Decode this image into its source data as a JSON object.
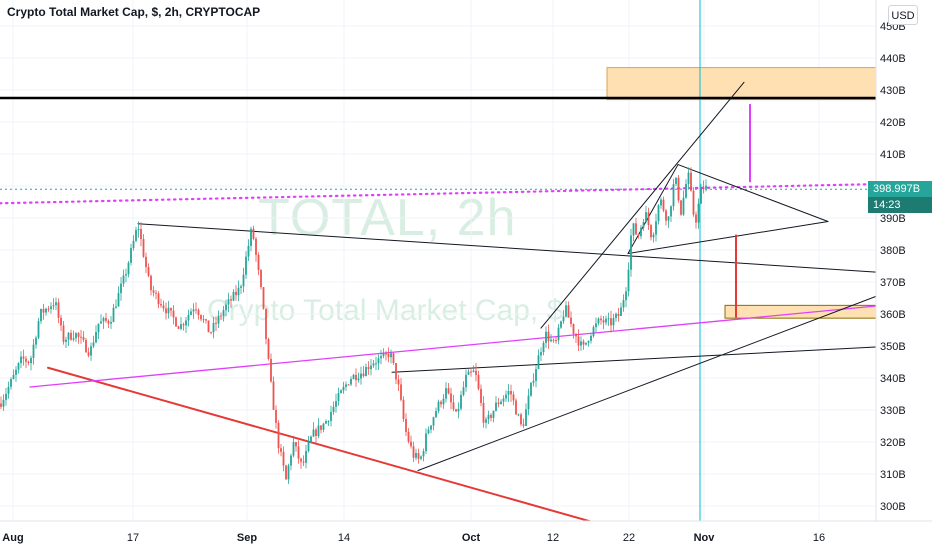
{
  "header": {
    "title": "Crypto Total Market Cap, $, 2h, CRYPTOCAP",
    "currency_button": "USD"
  },
  "watermark": {
    "symbol": "TOTAL, 2h",
    "name": "Crypto Total Market Cap, $"
  },
  "price_axis": {
    "current_price": "398.997B",
    "countdown": "14:23",
    "current_color": "#26a69a",
    "countdown_color": "#1e7b72"
  },
  "chart_data": {
    "type": "candlestick",
    "title": "Crypto Total Market Cap, $, 2h, CRYPTOCAP",
    "y_unit": "USD (billions)",
    "ylim": [
      295,
      455
    ],
    "y_ticks": [
      300,
      310,
      320,
      330,
      340,
      350,
      360,
      370,
      380,
      390,
      400,
      410,
      420,
      430,
      440,
      450
    ],
    "y_tick_labels": [
      "300B",
      "310B",
      "320B",
      "330B",
      "340B",
      "350B",
      "360B",
      "370B",
      "380B",
      "390B",
      "400B",
      "410B",
      "420B",
      "430B",
      "440B",
      "450B"
    ],
    "x_ticks": [
      {
        "label": "Aug",
        "bold": true
      },
      {
        "label": "17",
        "bold": false
      },
      {
        "label": "Sep",
        "bold": true
      },
      {
        "label": "14",
        "bold": false
      },
      {
        "label": "Oct",
        "bold": true
      },
      {
        "label": "12",
        "bold": false
      },
      {
        "label": "22",
        "bold": false
      },
      {
        "label": "Nov",
        "bold": true
      },
      {
        "label": "16",
        "bold": false
      }
    ],
    "price_path_anchors": [
      [
        0,
        332
      ],
      [
        10,
        338
      ],
      [
        22,
        346
      ],
      [
        30,
        345
      ],
      [
        40,
        360
      ],
      [
        55,
        364
      ],
      [
        63,
        352
      ],
      [
        75,
        354
      ],
      [
        90,
        348
      ],
      [
        98,
        357
      ],
      [
        110,
        358
      ],
      [
        125,
        372
      ],
      [
        138,
        388
      ],
      [
        150,
        368
      ],
      [
        165,
        362
      ],
      [
        180,
        356
      ],
      [
        195,
        363
      ],
      [
        210,
        354
      ],
      [
        225,
        362
      ],
      [
        240,
        368
      ],
      [
        252,
        387
      ],
      [
        262,
        365
      ],
      [
        270,
        340
      ],
      [
        278,
        320
      ],
      [
        286,
        308
      ],
      [
        293,
        320
      ],
      [
        302,
        312
      ],
      [
        312,
        322
      ],
      [
        325,
        326
      ],
      [
        337,
        333
      ],
      [
        350,
        340
      ],
      [
        363,
        342
      ],
      [
        372,
        345
      ],
      [
        383,
        346
      ],
      [
        390,
        348
      ],
      [
        398,
        338
      ],
      [
        405,
        324
      ],
      [
        413,
        316
      ],
      [
        420,
        314
      ],
      [
        428,
        324
      ],
      [
        436,
        330
      ],
      [
        446,
        336
      ],
      [
        456,
        328
      ],
      [
        466,
        340
      ],
      [
        475,
        342
      ],
      [
        485,
        325
      ],
      [
        497,
        332
      ],
      [
        510,
        336
      ],
      [
        522,
        324
      ],
      [
        533,
        340
      ],
      [
        545,
        354
      ],
      [
        555,
        350
      ],
      [
        565,
        362
      ],
      [
        573,
        355
      ],
      [
        583,
        349
      ],
      [
        590,
        354
      ],
      [
        600,
        358
      ],
      [
        610,
        357
      ],
      [
        620,
        360
      ],
      [
        627,
        370
      ],
      [
        632,
        388
      ],
      [
        638,
        384
      ],
      [
        645,
        392
      ],
      [
        652,
        384
      ],
      [
        660,
        396
      ],
      [
        668,
        389
      ],
      [
        675,
        403
      ],
      [
        681,
        392
      ],
      [
        688,
        404
      ],
      [
        695,
        388
      ],
      [
        702,
        400
      ],
      [
        708,
        398.997
      ]
    ],
    "series": [
      {
        "name": "Crypto Total Market Cap",
        "last_value": 398.997
      }
    ],
    "up_color": "#26a69a",
    "down_color": "#ef5350",
    "annotations": {
      "horizontal_lines": [
        {
          "value": 427.5,
          "color": "#000000",
          "style": "solid",
          "width": 2.5
        },
        {
          "value": 398.997,
          "color": "#26a69a",
          "style": "dotted",
          "width": 1
        }
      ],
      "rectangles": [
        {
          "x0": 607,
          "x1": 876,
          "y0": 427,
          "y1": 437,
          "fill": "#ffe0b2",
          "stroke": "#e0a050"
        },
        {
          "x0": 725,
          "x1": 876,
          "y0": 358.7,
          "y1": 362.7,
          "fill": "#ffe0b2",
          "stroke": "#8a6d00"
        }
      ],
      "trendlines": [
        {
          "name": "red-support-line",
          "color": "#e53935",
          "width": 2,
          "points": [
            [
              48,
              343.2
            ],
            [
              598,
              294.5
            ]
          ]
        },
        {
          "name": "pink-rising-line",
          "color": "#e040fb",
          "width": 1.3,
          "points": [
            [
              30,
              337.2
            ],
            [
              876,
              362.5
            ]
          ]
        },
        {
          "name": "pink-dotted-line",
          "color": "#e040fb",
          "width": 2.2,
          "dash": "dotted",
          "points": [
            [
              0,
              394.6
            ],
            [
              876,
              400.6
            ]
          ]
        },
        {
          "name": "upper-descending-line",
          "color": "#131722",
          "width": 1,
          "points": [
            [
              138,
              388.2
            ],
            [
              876,
              373.1
            ]
          ]
        },
        {
          "name": "rectangle-top-line",
          "color": "#131722",
          "width": 1,
          "points": [
            [
              392,
              341.8
            ],
            [
              876,
              349.7
            ]
          ]
        },
        {
          "name": "broadening-upper-line",
          "color": "#131722",
          "width": 1,
          "points": [
            [
              541,
              355.6
            ],
            [
              744,
              432.4
            ]
          ]
        },
        {
          "name": "broadening-lower-line",
          "color": "#131722",
          "width": 1,
          "points": [
            [
              418,
              311.1
            ],
            [
              876,
              365.5
            ]
          ]
        },
        {
          "name": "triangle-upper-side",
          "color": "#131722",
          "width": 1,
          "points": [
            [
              678,
              406.7
            ],
            [
              828,
              388.9
            ]
          ]
        },
        {
          "name": "triangle-lower-side",
          "color": "#131722",
          "width": 1,
          "points": [
            [
              628,
              378.9
            ],
            [
              828,
              388.9
            ]
          ]
        },
        {
          "name": "triangle-left-side",
          "color": "#131722",
          "width": 1,
          "points": [
            [
              628,
              378.9
            ],
            [
              678,
              406.7
            ]
          ]
        }
      ],
      "vertical_arrows": [
        {
          "name": "pink-measured-move",
          "color": "#e040fb",
          "x": 750,
          "y0": 401.2,
          "y1": 425.6
        },
        {
          "name": "red-measured-move",
          "color": "#e53935",
          "x": 736,
          "y0": 358.9,
          "y1": 384.8
        }
      ],
      "vertical_cursor": {
        "x": 700,
        "color": "#00bcd4"
      }
    }
  }
}
